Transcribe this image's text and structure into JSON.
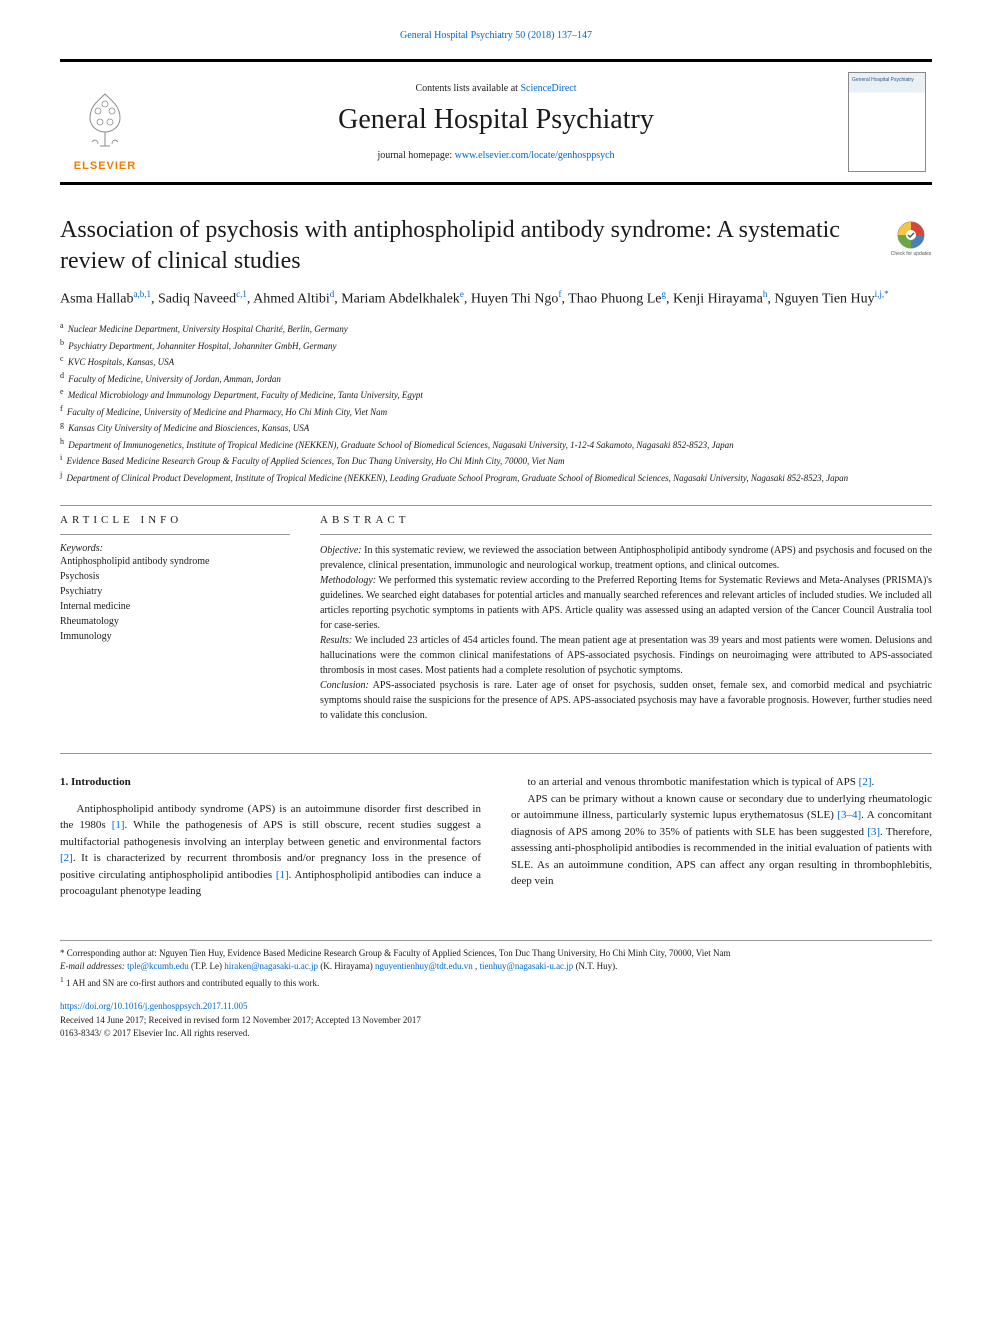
{
  "top_citation": "General Hospital Psychiatry 50 (2018) 137–147",
  "masthead": {
    "contents_prefix": "Contents lists available at ",
    "contents_link": "ScienceDirect",
    "journal": "General Hospital Psychiatry",
    "homepage_prefix": "journal homepage: ",
    "homepage_link": "www.elsevier.com/locate/genhosppsych",
    "elsevier": "ELSEVIER",
    "cover_text": "General Hospital Psychiatry"
  },
  "title": "Association of psychosis with antiphospholipid antibody syndrome: A systematic review of clinical studies",
  "check_updates": "Check for updates",
  "authors_html": "Asma Hallab<sup>a,b,1</sup>, Sadiq Naveed<sup>c,1</sup>, Ahmed Altibi<sup>d</sup>, Mariam Abdelkhalek<sup>e</sup>, Huyen Thi Ngo<sup>f</sup>, Thao Phuong Le<sup>g</sup>, Kenji Hirayama<sup>h</sup>, Nguyen Tien Huy<sup>i,j,*</sup>",
  "affiliations": [
    {
      "sup": "a",
      "text": "Nuclear Medicine Department, University Hospital Charité, Berlin, Germany"
    },
    {
      "sup": "b",
      "text": "Psychiatry Department, Johanniter Hospital, Johanniter GmbH, Germany"
    },
    {
      "sup": "c",
      "text": "KVC Hospitals, Kansas, USA"
    },
    {
      "sup": "d",
      "text": "Faculty of Medicine, University of Jordan, Amman, Jordan"
    },
    {
      "sup": "e",
      "text": "Medical Microbiology and Immunology Department, Faculty of Medicine, Tanta University, Egypt"
    },
    {
      "sup": "f",
      "text": "Faculty of Medicine, University of Medicine and Pharmacy, Ho Chi Minh City, Viet Nam"
    },
    {
      "sup": "g",
      "text": "Kansas City University of Medicine and Biosciences, Kansas, USA"
    },
    {
      "sup": "h",
      "text": "Department of Immunogenetics, Institute of Tropical Medicine (NEKKEN), Graduate School of Biomedical Sciences, Nagasaki University, 1-12-4 Sakamoto, Nagasaki 852-8523, Japan"
    },
    {
      "sup": "i",
      "text": "Evidence Based Medicine Research Group & Faculty of Applied Sciences, Ton Duc Thang University, Ho Chi Minh City, 70000, Viet Nam"
    },
    {
      "sup": "j",
      "text": "Department of Clinical Product Development, Institute of Tropical Medicine (NEKKEN), Leading Graduate School Program, Graduate School of Biomedical Sciences, Nagasaki University, Nagasaki 852-8523, Japan"
    }
  ],
  "article_info": {
    "heading": "ARTICLE INFO",
    "keywords_label": "Keywords:",
    "keywords": "Antiphospholipid antibody syndrome\nPsychosis\nPsychiatry\nInternal medicine\nRheumatology\nImmunology"
  },
  "abstract": {
    "heading": "ABSTRACT",
    "segments": [
      {
        "label": "Objective:",
        "text": " In this systematic review, we reviewed the association between Antiphospholipid antibody syndrome (APS) and psychosis and focused on the prevalence, clinical presentation, immunologic and neurological workup, treatment options, and clinical outcomes."
      },
      {
        "label": "Methodology:",
        "text": " We performed this systematic review according to the Preferred Reporting Items for Systematic Reviews and Meta-Analyses (PRISMA)'s guidelines. We searched eight databases for potential articles and manually searched references and relevant articles of included studies. We included all articles reporting psychotic symptoms in patients with APS. Article quality was assessed using an adapted version of the Cancer Council Australia tool for case-series."
      },
      {
        "label": "Results:",
        "text": " We included 23 articles of 454 articles found. The mean patient age at presentation was 39 years and most patients were women. Delusions and hallucinations were the common clinical manifestations of APS-associated psychosis. Findings on neuroimaging were attributed to APS-associated thrombosis in most cases. Most patients had a complete resolution of psychotic symptoms."
      },
      {
        "label": "Conclusion:",
        "text": " APS-associated psychosis is rare. Later age of onset for psychosis, sudden onset, female sex, and comorbid medical and psychiatric symptoms should raise the suspicions for the presence of APS. APS-associated psychosis may have a favorable prognosis. However, further studies need to validate this conclusion."
      }
    ]
  },
  "body": {
    "heading": "1. Introduction",
    "col1": "Antiphospholipid antibody syndrome (APS) is an autoimmune disorder first described in the 1980s [1]. While the pathogenesis of APS is still obscure, recent studies suggest a multifactorial pathogenesis involving an interplay between genetic and environmental factors [2]. It is characterized by recurrent thrombosis and/or pregnancy loss in the presence of positive circulating antiphospholipid antibodies [1]. Antiphospholipid antibodies can induce a procoagulant phenotype leading",
    "col2_p1": "to an arterial and venous thrombotic manifestation which is typical of APS [2].",
    "col2_p2": "APS can be primary without a known cause or secondary due to underlying rheumatologic or autoimmune illness, particularly systemic lupus erythematosus (SLE) [3–4]. A concomitant diagnosis of APS among 20% to 35% of patients with SLE has been suggested [3]. Therefore, assessing anti-phospholipid antibodies is recommended in the initial evaluation of patients with SLE. As an autoimmune condition, APS can affect any organ resulting in thrombophlebitis, deep vein",
    "refs": {
      "r1": "[1]",
      "r2": "[2]",
      "r34": "[3–4]",
      "r3": "[3]"
    }
  },
  "footnotes": {
    "corresponding": "* Corresponding author at: Nguyen Tien Huy, Evidence Based Medicine Research Group & Faculty of Applied Sciences, Ton Duc Thang University, Ho Chi Minh City, 70000, Viet Nam",
    "email_label": "E-mail addresses:",
    "emails": [
      {
        "addr": "tple@kcumb.edu",
        "who": "(T.P. Le)"
      },
      {
        "addr": "hiraken@nagasaki-u.ac.jp",
        "who": "(K. Hirayama)"
      },
      {
        "addr": "nguyentienhuy@tdt.edu.vn",
        "who": ","
      },
      {
        "addr": "tienhuy@nagasaki-u.ac.jp",
        "who": "(N.T. Huy)."
      }
    ],
    "note1": "1 AH and SN are co-first authors and contributed equally to this work."
  },
  "doi": {
    "link": "https://doi.org/10.1016/j.genhosppsych.2017.11.005",
    "received": "Received 14 June 2017; Received in revised form 12 November 2017; Accepted 13 November 2017",
    "copyright": "0163-8343/ © 2017 Elsevier Inc. All rights reserved."
  },
  "colors": {
    "link": "#0066cc",
    "elsevier_orange": "#ee7f00",
    "text": "#1a1a1a",
    "rule": "#999999"
  }
}
